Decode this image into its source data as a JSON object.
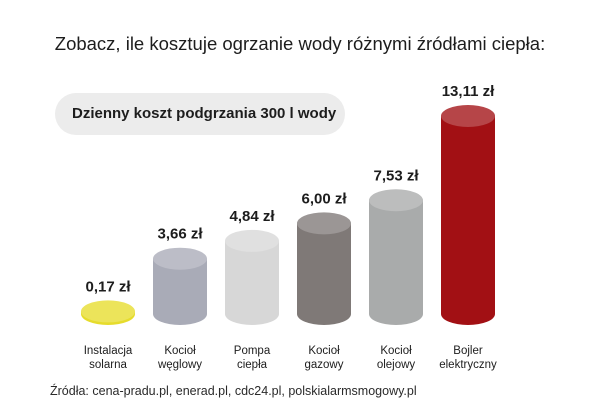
{
  "title": "Zobacz, ile kosztuje ogrzanie wody różnymi źródłami ciepła:",
  "subtitle": "Dzienny koszt podgrzania 300 l wody",
  "source": "Źródła: cena-pradu.pl, enerad.pl, cdc24.pl, polskialarmsmogowy.pl",
  "chart_data": {
    "type": "bar",
    "title": "Zobacz, ile kosztuje ogrzanie wody różnymi źródłami ciepła:",
    "subtitle": "Dzienny koszt podgrzania 300 l wody",
    "unit": "zł",
    "categories": [
      [
        "Instalacja",
        "solarna"
      ],
      [
        "Kocioł",
        "węglowy"
      ],
      [
        "Pompa",
        "ciepła"
      ],
      [
        "Kocioł",
        "gazowy"
      ],
      [
        "Kocioł",
        "olejowy"
      ],
      [
        "Bojler",
        "elektryczny"
      ]
    ],
    "values": [
      0.17,
      3.66,
      4.84,
      6.0,
      7.53,
      13.11
    ],
    "value_labels": [
      "0,17 zł",
      "3,66 zł",
      "4,84 zł",
      "6,00 zł",
      "7,53 zł",
      "13,11 zł"
    ],
    "colors": [
      "#e6dc2c",
      "#a9abb7",
      "#d7d7d7",
      "#7f7977",
      "#a9abab",
      "#a21014"
    ],
    "ylim": [
      0,
      13.11
    ],
    "grid": false,
    "legend": "none",
    "bar_shape": "cylinder"
  }
}
